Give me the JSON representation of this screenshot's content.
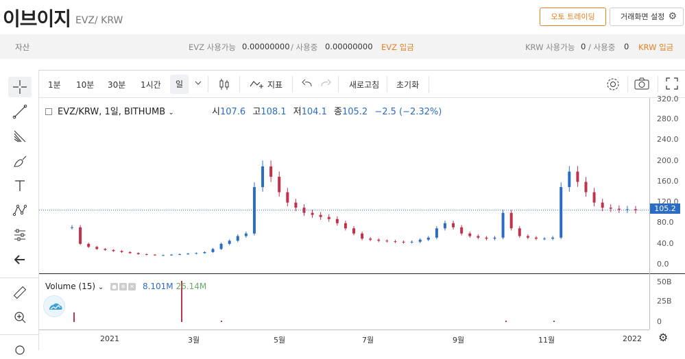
{
  "header": {
    "coin_name": "이브이지",
    "pair": "EVZ/ KRW",
    "auto_trading": "오토 트레이딩",
    "screen_settings": "거래화면 설정"
  },
  "assets": {
    "label": "자산",
    "evz_available_label": "EVZ 사용가능",
    "evz_available": "0.00000000",
    "evz_in_use_label": "/ 사용중",
    "evz_in_use": "0.00000000",
    "evz_deposit": "EVZ 입금",
    "krw_available_label": "KRW 사용가능",
    "krw_available": "0",
    "krw_in_use_label": "/ 사용중",
    "krw_in_use": "0",
    "krw_deposit": "KRW 입금"
  },
  "toolbar": {
    "intervals": [
      "1분",
      "10분",
      "30분",
      "1시간",
      "일"
    ],
    "selected": "일",
    "indicator": "지표",
    "refresh": "새로고침",
    "reset": "초기화"
  },
  "legend": {
    "symbol": "EVZ/KRW, 1일, BITHUMB",
    "open_label": "시",
    "open": "107.6",
    "high_label": "고",
    "high": "108.1",
    "low_label": "저",
    "low": "104.1",
    "close_label": "종",
    "close": "105.2",
    "change": "−2.5 (−2.32%)"
  },
  "volume": {
    "label": "Volume (15)",
    "value1": "8.101M",
    "value2": "26.14M"
  },
  "price_tag": "105.2",
  "colors": {
    "up": "#2b6cc4",
    "down": "#c0324b",
    "accent": "#e2801f"
  },
  "chart_data": {
    "type": "line",
    "y_ticks": [
      "320.0",
      "280.0",
      "240.0",
      "200.0",
      "160.0",
      "120.0",
      "80.0",
      "40.0",
      "0.0"
    ],
    "volume_ticks": [
      "50B",
      "25B",
      "0"
    ],
    "x_ticks": [
      "2021",
      "3월",
      "5월",
      "7월",
      "9월",
      "11월",
      "2022"
    ],
    "ylim": [
      0,
      320
    ],
    "last_price": 105.2,
    "series": [
      {
        "values": [
          72,
          40,
          34,
          30,
          28,
          26,
          24,
          22,
          20,
          19,
          18,
          18,
          19,
          20,
          21,
          22,
          24,
          30,
          40,
          46,
          55,
          60,
          150,
          190,
          170,
          140,
          120,
          110,
          100,
          96,
          92,
          88,
          80,
          70,
          60,
          50,
          48,
          46,
          45,
          44,
          43,
          44,
          48,
          52,
          70,
          80,
          72,
          60,
          55,
          52,
          50,
          52,
          100,
          70,
          55,
          52,
          50,
          50,
          52,
          150,
          180,
          160,
          140,
          120,
          110,
          108,
          106,
          107,
          105
        ]
      }
    ]
  }
}
